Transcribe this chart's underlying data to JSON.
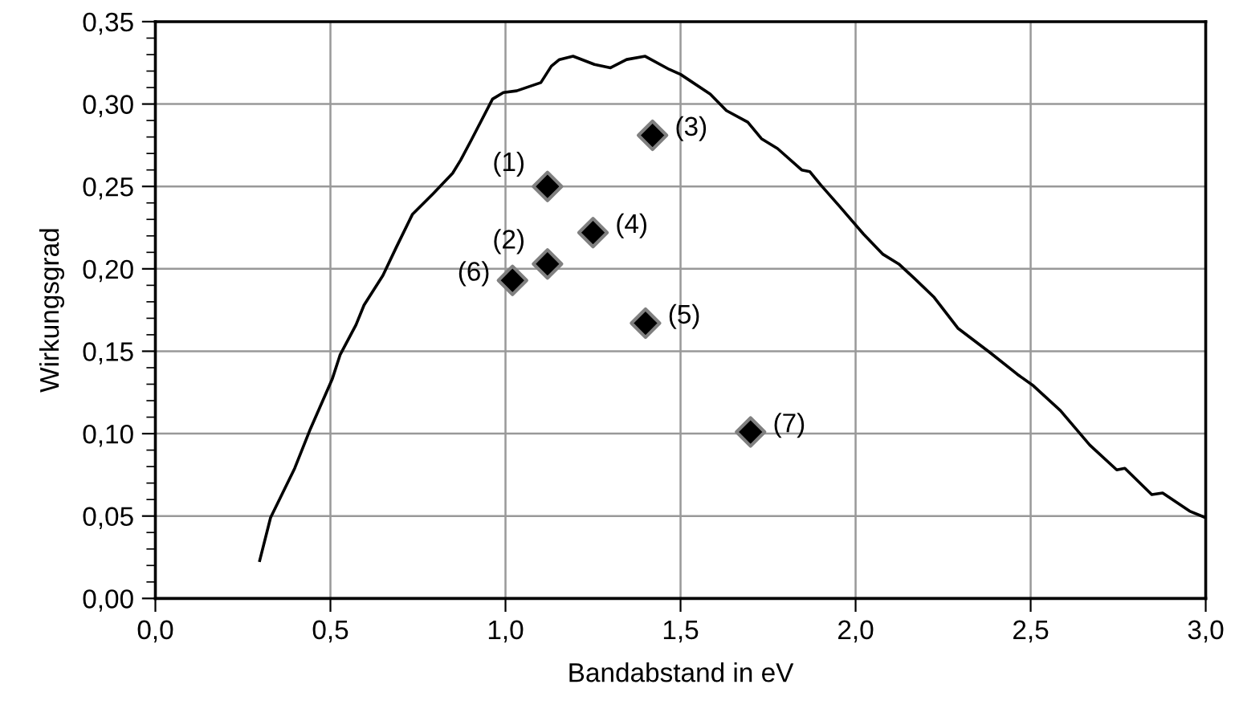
{
  "chart_data": {
    "type": "line",
    "xlabel": "Bandabstand in eV",
    "ylabel": "Wirkungsgrad",
    "xlim": [
      0,
      3.0
    ],
    "ylim": [
      0,
      0.35
    ],
    "xticks": [
      {
        "value": 0,
        "label": "0,0"
      },
      {
        "value": 0.5,
        "label": "0,5"
      },
      {
        "value": 1.0,
        "label": "1,0"
      },
      {
        "value": 1.5,
        "label": "1,5"
      },
      {
        "value": 2.0,
        "label": "2,0"
      },
      {
        "value": 2.5,
        "label": "2,5"
      },
      {
        "value": 3.0,
        "label": "3,0"
      }
    ],
    "yticks": [
      {
        "value": 0,
        "label": "0,00"
      },
      {
        "value": 0.05,
        "label": "0,05"
      },
      {
        "value": 0.1,
        "label": "0,10"
      },
      {
        "value": 0.15,
        "label": "0,15"
      },
      {
        "value": 0.2,
        "label": "0,20"
      },
      {
        "value": 0.25,
        "label": "0,25"
      },
      {
        "value": 0.3,
        "label": "0,30"
      },
      {
        "value": 0.35,
        "label": "0,35"
      }
    ],
    "grid": true,
    "legend": false,
    "series": [
      {
        "color": "#000000",
        "marker": "none",
        "line_style": "solid",
        "x": [
          0.298,
          0.329,
          0.398,
          0.443,
          0.505,
          0.528,
          0.573,
          0.596,
          0.65,
          0.688,
          0.734,
          0.795,
          0.849,
          0.872,
          0.902,
          0.963,
          0.994,
          1.032,
          1.101,
          1.131,
          1.154,
          1.193,
          1.254,
          1.3,
          1.346,
          1.399,
          1.468,
          1.5,
          1.585,
          1.631,
          1.692,
          1.731,
          1.777,
          1.846,
          1.869,
          1.9,
          1.954,
          2.023,
          2.077,
          2.123,
          2.169,
          2.223,
          2.292,
          2.385,
          2.462,
          2.508,
          2.585,
          2.669,
          2.746,
          2.769,
          2.846,
          2.877,
          2.954,
          3.0
        ],
        "values": [
          0.023,
          0.049,
          0.079,
          0.103,
          0.133,
          0.148,
          0.166,
          0.178,
          0.196,
          0.213,
          0.233,
          0.246,
          0.258,
          0.266,
          0.278,
          0.303,
          0.307,
          0.308,
          0.313,
          0.323,
          0.327,
          0.329,
          0.324,
          0.322,
          0.327,
          0.329,
          0.321,
          0.318,
          0.306,
          0.296,
          0.289,
          0.279,
          0.273,
          0.26,
          0.259,
          0.251,
          0.238,
          0.221,
          0.209,
          0.203,
          0.194,
          0.183,
          0.164,
          0.149,
          0.136,
          0.129,
          0.114,
          0.093,
          0.078,
          0.079,
          0.063,
          0.064,
          0.053,
          0.049
        ]
      },
      {
        "type": "scatter",
        "color": "#000000",
        "marker": "diamond",
        "x": [
          1.12,
          1.12,
          1.42,
          1.25,
          1.4,
          1.02,
          1.7
        ],
        "values": [
          0.25,
          0.203,
          0.281,
          0.222,
          0.167,
          0.193,
          0.101
        ]
      }
    ],
    "annotations": [
      {
        "text": "(1)",
        "x": 1.12,
        "y": 0.25
      },
      {
        "text": "(2)",
        "x": 1.12,
        "y": 0.203
      },
      {
        "text": "(3)",
        "x": 1.42,
        "y": 0.281
      },
      {
        "text": "(4)",
        "x": 1.25,
        "y": 0.222
      },
      {
        "text": "(5)",
        "x": 1.4,
        "y": 0.167
      },
      {
        "text": "(6)",
        "x": 1.02,
        "y": 0.193
      },
      {
        "text": "(7)",
        "x": 1.7,
        "y": 0.101
      }
    ]
  }
}
